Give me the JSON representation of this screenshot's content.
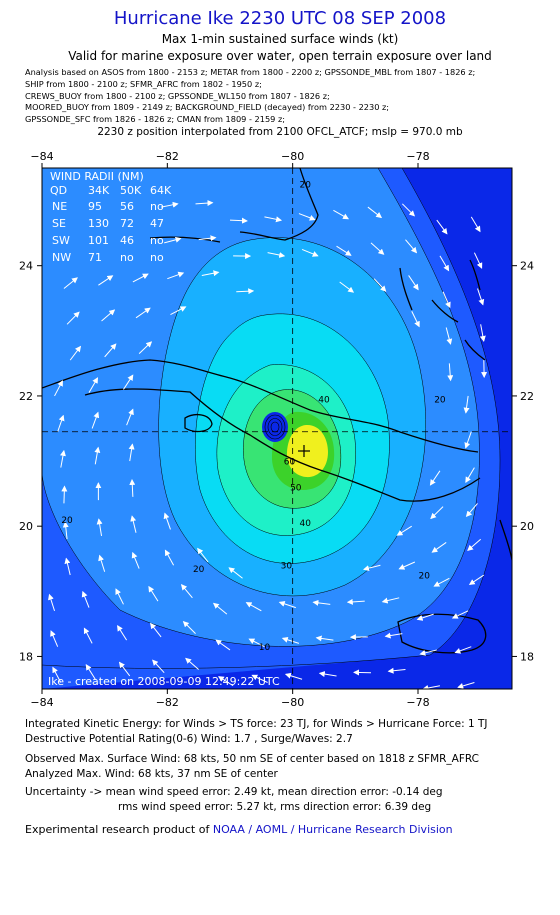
{
  "header": {
    "title": "Hurricane Ike 2230 UTC 08 SEP 2008",
    "subtitle1": "Max 1-min sustained surface winds (kt)",
    "subtitle2": "Valid for marine exposure over water, open terrain exposure over land",
    "analysis_lines": [
      "Analysis based on   ASOS from 1800 - 2153 z;  METAR from 1800 - 2200 z;  GPSSONDE_MBL from 1807 - 1826 z;",
      "SHIP from 1800 - 2100 z;  SFMR_AFRC from 1802 - 1950 z;",
      "CREWS_BUOY from 1800 - 2100 z;  GPSSONDE_WL150 from 1807 - 1826 z;",
      "MOORED_BUOY from 1809 - 2149 z;  BACKGROUND_FIELD (decayed) from 2230 - 2230 z;",
      "GPSSONDE_SFC from 1826 - 1826 z;  CMAN from 1809 - 2159 z;"
    ],
    "interp_note": "2230 z position interpolated from 2100 OFCL_ATCF; mslp = 970.0 mb"
  },
  "chart_data": {
    "type": "contour",
    "xlim": [
      -84,
      -76.5
    ],
    "ylim": [
      17.5,
      25.5
    ],
    "x_ticks": [
      -84,
      -82,
      -80,
      -78
    ],
    "y_ticks": [
      18,
      20,
      22,
      24
    ],
    "x_tick_labels": [
      "−84",
      "−82",
      "−80",
      "−78"
    ],
    "y_tick_labels": [
      "18",
      "20",
      "22",
      "24"
    ],
    "crosshair_center": [
      -80,
      21.45
    ],
    "max_wind_center": [
      -79.6,
      21.1
    ],
    "contour_levels_kt": [
      10,
      20,
      30,
      40,
      50,
      60
    ],
    "contour_labels": [
      {
        "text": "10",
        "lon": -80.45,
        "lat": 18.1
      },
      {
        "text": "20",
        "lon": -79.8,
        "lat": 25.2
      },
      {
        "text": "20",
        "lon": -81.5,
        "lat": 19.3
      },
      {
        "text": "20",
        "lon": -77.65,
        "lat": 21.9
      },
      {
        "text": "20",
        "lon": -77.9,
        "lat": 19.2
      },
      {
        "text": "20",
        "lon": -83.6,
        "lat": 20.05
      },
      {
        "text": "30",
        "lon": -80.1,
        "lat": 19.35
      },
      {
        "text": "40",
        "lon": -79.5,
        "lat": 21.9
      },
      {
        "text": "40",
        "lon": -79.8,
        "lat": 20.0
      },
      {
        "text": "50",
        "lon": -79.95,
        "lat": 20.55
      },
      {
        "text": "60",
        "lon": -80.05,
        "lat": 20.95
      }
    ],
    "colors": {
      "dark_blue": "#0a28e8",
      "blue": "#1e5aff",
      "mid_blue": "#2c8cff",
      "light_blue": "#18b0ff",
      "cyan": "#08dcf4",
      "aqua": "#1ef0c8",
      "green": "#38e474",
      "bright_green": "#3cd22a",
      "yellow": "#f0f01e"
    },
    "wind_radii": {
      "title": "WIND RADII (NM)",
      "columns": [
        "QD",
        "34K",
        "50K",
        "64K"
      ],
      "rows": [
        {
          "q": "NE",
          "r34": "95",
          "r50": "56",
          "r64": "no"
        },
        {
          "q": "SE",
          "r34": "130",
          "r50": "72",
          "r64": "47"
        },
        {
          "q": "SW",
          "r34": "101",
          "r50": "46",
          "r64": "no"
        },
        {
          "q": "NW",
          "r34": "71",
          "r50": "no",
          "r64": "no"
        }
      ]
    },
    "created_label": "Ike  -  created on 2008-09-09 12:49:22 UTC"
  },
  "footer": {
    "ike_line": "Integrated Kinetic Energy:  for Winds > TS force: 23 TJ,  for Winds > Hurricane Force: 1 TJ",
    "dp_line": "Destructive Potential Rating(0-6)   Wind: 1.7 , Surge/Waves: 2.7",
    "obs_line": "Observed Max. Surface Wind: 68 kts, 50 nm SE of center based on 1818 z SFMR_AFRC",
    "analyzed_line": "Analyzed Max. Wind: 68 kts, 37 nm SE of center",
    "uncertainty_line1": "Uncertainty -> mean wind speed error: 2.49 kt,   mean direction error:  -0.14 deg",
    "uncertainty_line2": "rms wind speed error: 5.27 kt,   rms direction error: 6.39 deg",
    "credit_prefix": "Experimental research product of",
    "credit_org": "NOAA / AOML / Hurricane Research Division"
  }
}
